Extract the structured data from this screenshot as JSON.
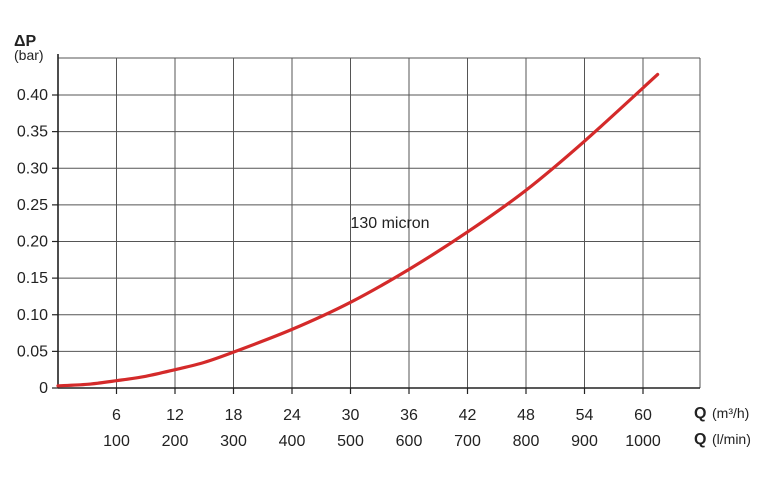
{
  "chart_data": {
    "type": "line",
    "y_axis": {
      "symbol": "ΔP",
      "unit": "(bar)",
      "ticks": [
        "0",
        "0.05",
        "0.10",
        "0.15",
        "0.20",
        "0.25",
        "0.30",
        "0.35",
        "0.40"
      ],
      "ylim": [
        0,
        0.4
      ]
    },
    "x_axis": {
      "symbol": "Q",
      "primary_unit": "(m³/h)",
      "secondary_unit": "(l/min)",
      "primary_ticks": [
        "6",
        "12",
        "18",
        "24",
        "30",
        "36",
        "42",
        "48",
        "54",
        "60"
      ],
      "secondary_ticks": [
        "100",
        "200",
        "300",
        "400",
        "500",
        "600",
        "700",
        "800",
        "900",
        "1000"
      ],
      "xlim": [
        0,
        61.5
      ]
    },
    "grid": true,
    "series": [
      {
        "name": "130 micron",
        "color": "#d42a2a",
        "x": [
          0,
          3,
          6,
          9,
          12,
          15,
          18,
          24,
          30,
          36,
          42,
          48,
          54,
          61.5
        ],
        "y": [
          0.003,
          0.005,
          0.01,
          0.016,
          0.025,
          0.035,
          0.049,
          0.08,
          0.117,
          0.162,
          0.213,
          0.27,
          0.337,
          0.428
        ]
      }
    ]
  }
}
